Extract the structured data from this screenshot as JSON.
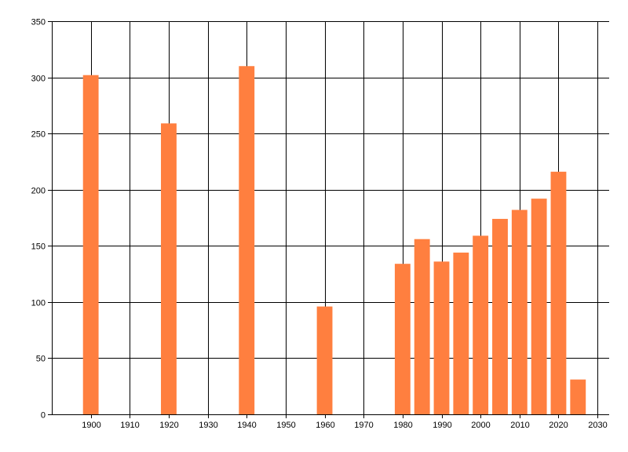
{
  "chart_data": {
    "type": "bar",
    "x": [
      1900,
      1920,
      1940,
      1960,
      1980,
      1985,
      1990,
      1995,
      2000,
      2005,
      2010,
      2015,
      2020,
      2025
    ],
    "values": [
      302,
      259,
      310,
      96,
      134,
      156,
      136,
      144,
      159,
      174,
      182,
      192,
      216,
      31
    ],
    "title": "",
    "xlabel": "",
    "ylabel": "",
    "xlim": [
      1890,
      2033
    ],
    "ylim": [
      0,
      350
    ],
    "xticks": [
      1900,
      1910,
      1920,
      1930,
      1940,
      1950,
      1960,
      1970,
      1980,
      1990,
      2000,
      2010,
      2020,
      2030
    ],
    "yticks": [
      0,
      50,
      100,
      150,
      200,
      250,
      300,
      350
    ],
    "grid": true,
    "legend": "none",
    "bar_color": "#FF7F3F",
    "grid_color": "#000000"
  }
}
